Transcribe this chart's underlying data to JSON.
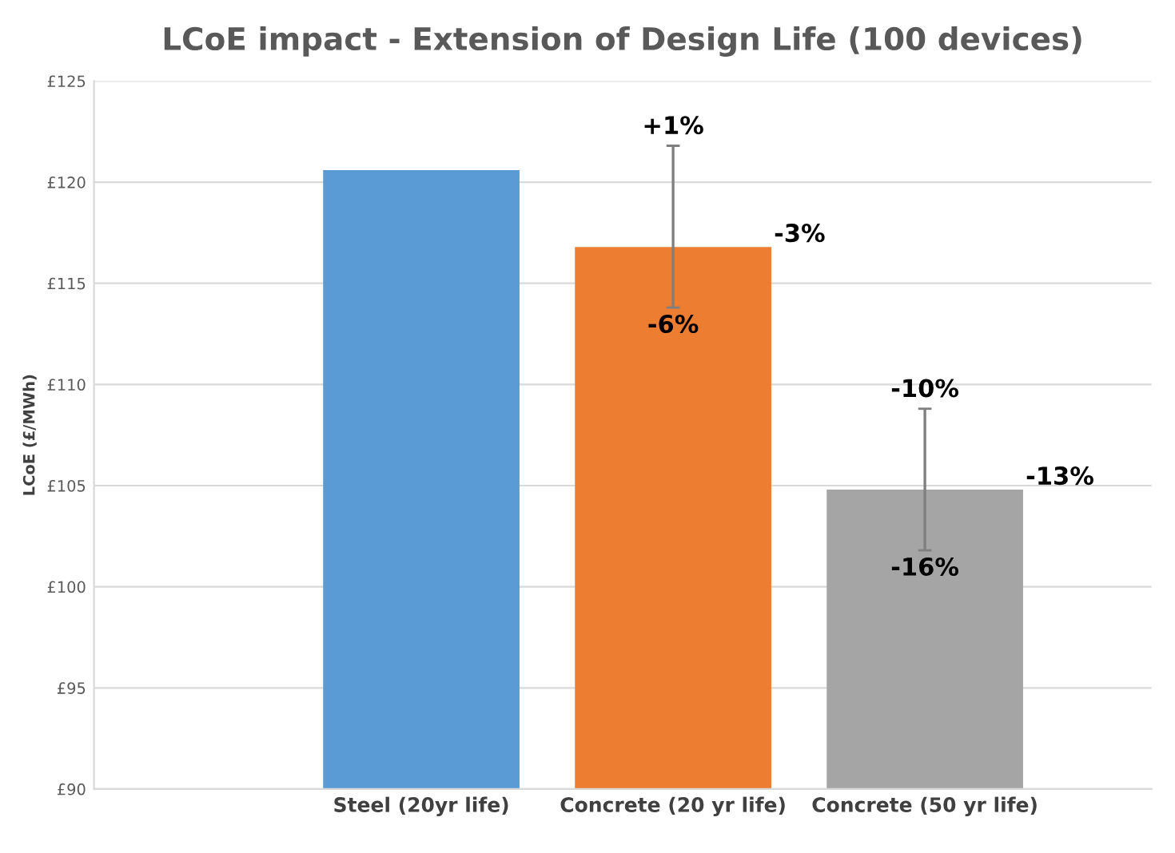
{
  "chart_data": {
    "type": "bar",
    "title": "LCoE impact - Extension of Design Life (100 devices)",
    "ylabel": "LCoE (£/MWh)",
    "categories": [
      "Steel (20yr life)",
      "Concrete (20 yr life)",
      "Concrete (50 yr life)"
    ],
    "values": [
      120.6,
      116.8,
      104.8
    ],
    "colors": [
      "#5b9bd5",
      "#ed7d31",
      "#a5a5a5"
    ],
    "errors": [
      null,
      [
        113.8,
        121.8
      ],
      [
        101.8,
        108.8
      ]
    ],
    "ylim": [
      90,
      125
    ],
    "yticks": [
      {
        "value": 90,
        "label": "£90"
      },
      {
        "value": 95,
        "label": "£95"
      },
      {
        "value": 100,
        "label": "£100"
      },
      {
        "value": 105,
        "label": "£105"
      },
      {
        "value": 110,
        "label": "£110"
      },
      {
        "value": 115,
        "label": "£115"
      },
      {
        "value": 120,
        "label": "£120"
      },
      {
        "value": 125,
        "label": "£125"
      }
    ],
    "grid": "y",
    "annotations": [
      "+1%",
      "-3%",
      "-6%",
      "-10%",
      "-13%",
      "-16%"
    ]
  }
}
